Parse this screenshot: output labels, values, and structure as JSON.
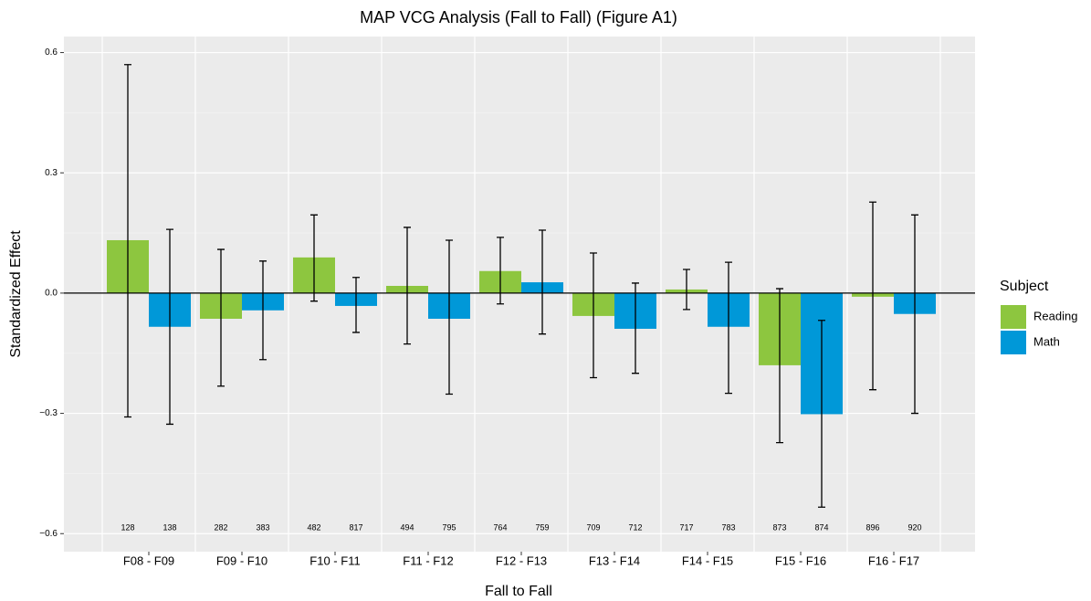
{
  "chart_data": {
    "type": "bar",
    "title": "MAP VCG Analysis (Fall to Fall) (Figure A1)",
    "x_label": "Fall to Fall",
    "y_label": "Standardized Effect",
    "legend_title": "Subject",
    "legend_position": "right",
    "grid": true,
    "categories": [
      "F08 - F09",
      "F09 - F10",
      "F10 - F11",
      "F11 - F12",
      "F12 - F13",
      "F13 - F14",
      "F14 - F15",
      "F15 - F16",
      "F16 - F17"
    ],
    "ylim": [
      -0.645,
      0.64
    ],
    "yticks": [
      0.6,
      0.3,
      {
        "value": 0,
        "label": "0.0"
      },
      {
        "value": -0.3,
        "label": "−0.3"
      },
      {
        "value": -0.6,
        "label": "−0.6"
      }
    ],
    "series": [
      {
        "name": "Reading",
        "color": "#8dc63f",
        "values": [
          0.132,
          -0.064,
          0.089,
          0.018,
          0.055,
          -0.057,
          0.009,
          -0.18,
          -0.009
        ],
        "lower": [
          -0.309,
          -0.232,
          -0.02,
          -0.127,
          -0.027,
          -0.211,
          -0.041,
          -0.373,
          -0.241
        ],
        "upper": [
          0.57,
          0.109,
          0.195,
          0.164,
          0.139,
          0.1,
          0.059,
          0.011,
          0.227
        ],
        "counts": [
          128,
          282,
          482,
          494,
          764,
          709,
          717,
          873,
          896
        ]
      },
      {
        "name": "Math",
        "color": "#0098d8",
        "values": [
          -0.084,
          -0.043,
          -0.032,
          -0.064,
          0.027,
          -0.089,
          -0.084,
          -0.302,
          -0.052
        ],
        "lower": [
          -0.327,
          -0.166,
          -0.098,
          -0.252,
          -0.102,
          -0.2,
          -0.25,
          -0.534,
          -0.3
        ],
        "upper": [
          0.159,
          0.08,
          0.039,
          0.132,
          0.157,
          0.025,
          0.077,
          -0.068,
          0.195
        ],
        "counts": [
          138,
          383,
          817,
          795,
          759,
          712,
          783,
          874,
          920
        ]
      }
    ]
  }
}
